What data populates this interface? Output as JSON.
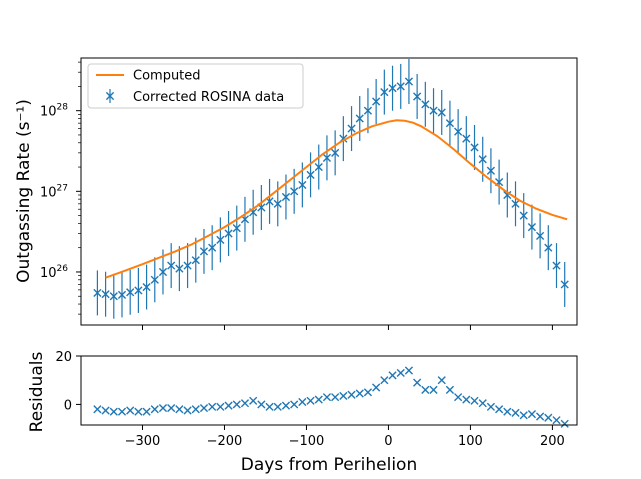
{
  "colors": {
    "computed": "#ff7f0e",
    "data": "#1f77b4",
    "axis": "#000000",
    "background": "#ffffff"
  },
  "chart_data": [
    {
      "type": "line",
      "panel": "main",
      "yscale": "log",
      "ylabel": "Outgassing Rate (s⁻¹)",
      "xlim": [
        -375,
        230
      ],
      "ylim": [
        2.2e+25,
        4.5e+28
      ],
      "y_ticks": [
        {
          "value": 1e+26,
          "label": "10",
          "exp": "26"
        },
        {
          "value": 1e+27,
          "label": "10",
          "exp": "27"
        },
        {
          "value": 1e+28,
          "label": "10",
          "exp": "28"
        }
      ],
      "x_ticks": [
        -300,
        -200,
        -100,
        0,
        100,
        200
      ],
      "legend": {
        "position": "upper-left",
        "entries": [
          {
            "label": "Computed",
            "marker": "line"
          },
          {
            "label": "Corrected ROSINA data",
            "marker": "x-errorbar"
          }
        ]
      },
      "series": [
        {
          "name": "Computed",
          "x": [
            -345,
            -320,
            -300,
            -280,
            -260,
            -240,
            -220,
            -200,
            -180,
            -160,
            -140,
            -120,
            -100,
            -80,
            -60,
            -40,
            -20,
            0,
            10,
            20,
            30,
            40,
            60,
            80,
            100,
            120,
            140,
            160,
            180,
            200,
            218
          ],
          "y": [
            8.5e+25,
            1.05e+26,
            1.25e+26,
            1.5e+26,
            1.8e+26,
            2.2e+26,
            2.8e+26,
            3.6e+26,
            4.8e+26,
            6.6e+26,
            9.5e+26,
            1.38e+27,
            2e+27,
            2.9e+27,
            4e+27,
            5.2e+27,
            6.4e+27,
            7.3e+27,
            7.6e+27,
            7.5e+27,
            7.1e+27,
            6.4e+27,
            4.8e+27,
            3.3e+27,
            2.2e+27,
            1.5e+27,
            1.05e+27,
            7.7e+26,
            6.1e+26,
            5.1e+26,
            4.5e+26
          ]
        },
        {
          "name": "Corrected ROSINA data",
          "x": [
            -355,
            -345,
            -335,
            -325,
            -315,
            -305,
            -295,
            -285,
            -275,
            -265,
            -255,
            -245,
            -235,
            -225,
            -215,
            -205,
            -195,
            -185,
            -175,
            -165,
            -155,
            -145,
            -135,
            -125,
            -115,
            -105,
            -95,
            -85,
            -75,
            -65,
            -55,
            -45,
            -35,
            -25,
            -15,
            -5,
            5,
            15,
            25,
            35,
            45,
            55,
            65,
            75,
            85,
            95,
            105,
            115,
            125,
            135,
            145,
            155,
            165,
            175,
            185,
            195,
            205,
            215
          ],
          "y": [
            5.5e+25,
            5.3e+25,
            5e+25,
            5.2e+25,
            5.6e+25,
            5.9e+25,
            6.5e+25,
            8e+25,
            1e+26,
            1.2e+26,
            1.1e+26,
            1.2e+26,
            1.4e+26,
            1.8e+26,
            2e+26,
            2.5e+26,
            3e+26,
            3.5e+26,
            4.5e+26,
            5.5e+26,
            6.3e+26,
            7.5e+26,
            7e+26,
            8.5e+26,
            1e+27,
            1.2e+27,
            1.6e+27,
            2e+27,
            2.6e+27,
            3e+27,
            4.5e+27,
            6e+27,
            8e+27,
            1e+28,
            1.3e+28,
            1.7e+28,
            1.9e+28,
            2e+28,
            2.3e+28,
            1.5e+28,
            1.2e+28,
            1e+28,
            9.5e+27,
            7e+27,
            5.5e+27,
            4.5e+27,
            3.5e+27,
            2.5e+27,
            1.8e+27,
            1.3e+27,
            9e+26,
            7e+26,
            5e+26,
            3.6e+26,
            2.8e+26,
            2e+26,
            1.2e+26,
            7e+25
          ]
        }
      ]
    },
    {
      "type": "scatter",
      "panel": "residuals",
      "ylabel": "Residuals",
      "xlabel": "Days from Perihelion",
      "xlim": [
        -375,
        230
      ],
      "ylim": [
        -8.5,
        20
      ],
      "y_ticks": [
        0,
        20
      ],
      "x_ticks": [
        -300,
        -200,
        -100,
        0,
        100,
        200
      ],
      "series": [
        {
          "name": "Residuals",
          "x": [
            -355,
            -345,
            -335,
            -325,
            -315,
            -305,
            -295,
            -285,
            -275,
            -265,
            -255,
            -245,
            -235,
            -225,
            -215,
            -205,
            -195,
            -185,
            -175,
            -165,
            -155,
            -145,
            -135,
            -125,
            -115,
            -105,
            -95,
            -85,
            -75,
            -65,
            -55,
            -45,
            -35,
            -25,
            -15,
            -5,
            5,
            15,
            25,
            35,
            45,
            55,
            65,
            75,
            85,
            95,
            105,
            115,
            125,
            135,
            145,
            155,
            165,
            175,
            185,
            195,
            205,
            215
          ],
          "y": [
            -2,
            -2.5,
            -3,
            -3,
            -2.5,
            -3,
            -3,
            -2,
            -1.5,
            -1.5,
            -2,
            -2.5,
            -2,
            -1.5,
            -1,
            -1,
            -0.5,
            0,
            0.5,
            1.5,
            0,
            -1,
            -1,
            -0.5,
            0,
            1,
            1.5,
            2,
            3,
            3,
            3.5,
            4,
            4.5,
            5,
            7,
            10,
            12,
            13,
            14,
            9,
            6,
            6,
            10,
            6,
            3,
            2,
            1.5,
            0.5,
            -1,
            -2,
            -3,
            -3.5,
            -4.5,
            -4,
            -5,
            -5.5,
            -6.5,
            -8
          ]
        }
      ]
    }
  ]
}
